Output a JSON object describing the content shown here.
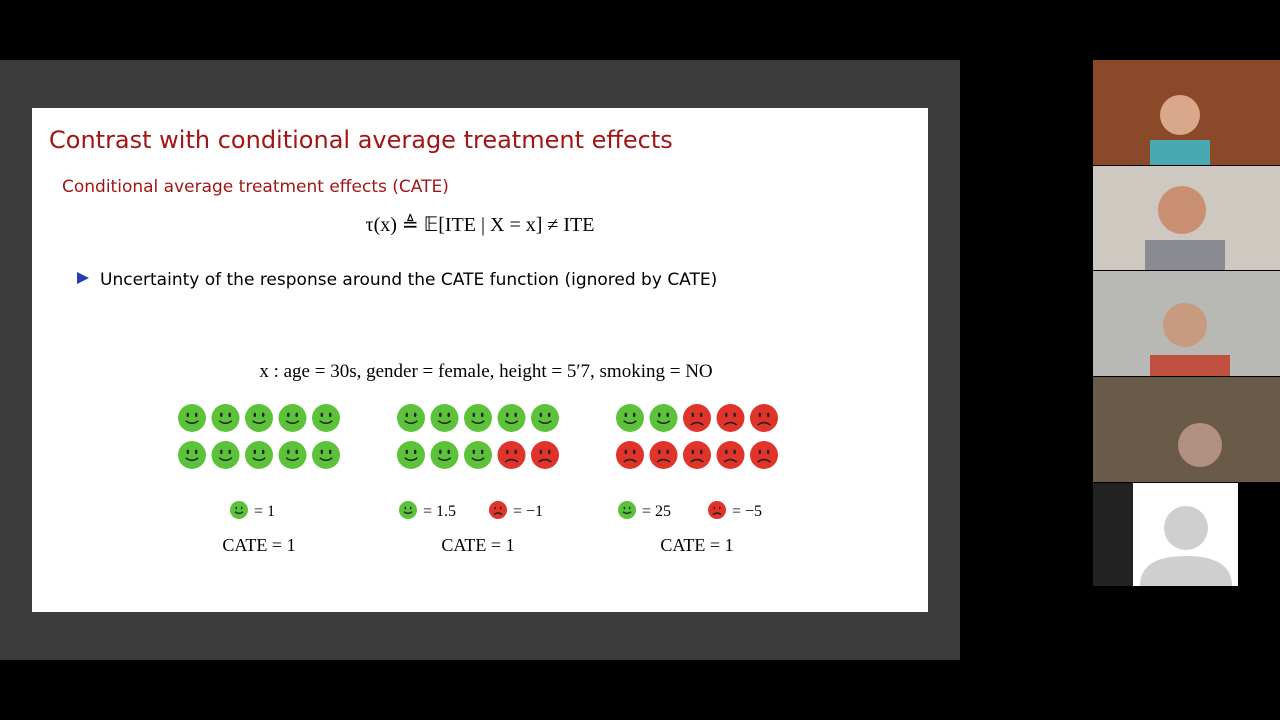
{
  "slide": {
    "title": "Contrast with conditional average treatment effects",
    "subtitle": "Conditional average treatment effects (CATE)",
    "formula": "τ(x) ≜ 𝔼[ITE | X = x] ≠ ITE",
    "bullet": "Uncertainty of the response around the CATE function (ignored by CATE)",
    "covariates": "x : age = 30s, gender = female, height = 5′7, smoking = NO",
    "groups": [
      {
        "legend": [
          "= 1"
        ],
        "cate": "CATE = 1"
      },
      {
        "legend": [
          "= 1.5",
          "= −1"
        ],
        "cate": "CATE = 1"
      },
      {
        "legend": [
          "= 25",
          "= −5"
        ],
        "cate": "CATE = 1"
      }
    ]
  }
}
